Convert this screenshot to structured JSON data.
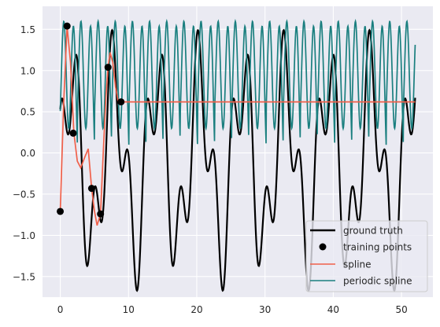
{
  "chart_data": {
    "type": "line",
    "title": "",
    "xlabel": "",
    "ylabel": "",
    "xlim": [
      -2.6,
      54.6
    ],
    "ylim": [
      -1.75,
      1.78
    ],
    "grid": true,
    "legend_position": "bottom-right",
    "x_ticks": [
      0,
      10,
      20,
      30,
      40,
      50
    ],
    "x_tick_labels": [
      "0",
      "10",
      "20",
      "30",
      "40",
      "50"
    ],
    "y_ticks": [
      -1.5,
      -1.0,
      -0.5,
      0.0,
      0.5,
      1.0,
      1.5
    ],
    "y_tick_labels": [
      "−1.5",
      "−1.0",
      "−0.5",
      "0.0",
      "0.5",
      "1.0",
      "1.5"
    ],
    "series": [
      {
        "name": "ground truth",
        "kind": "line",
        "color": "#000000",
        "x_range": [
          0,
          52
        ],
        "formula": "sin(x) + cos(2.5x) in equivalent form",
        "samples": 1040
      },
      {
        "name": "training points",
        "kind": "scatter",
        "color": "#000000",
        "x": [
          0.0,
          1.0,
          1.9,
          4.6,
          5.9,
          7.0,
          8.9
        ],
        "y": [
          -0.71,
          1.54,
          0.24,
          -0.43,
          -0.74,
          1.04,
          0.62
        ]
      },
      {
        "name": "spline",
        "kind": "line",
        "color": "#f0604a",
        "x": [
          0,
          0.5,
          1.0,
          1.5,
          2.0,
          2.5,
          3.0,
          3.6,
          4.1,
          4.6,
          5.0,
          5.4,
          5.9,
          6.3,
          6.7,
          7.0,
          7.3,
          7.7,
          8.1,
          8.5,
          8.9,
          9.5,
          10,
          20,
          30,
          40,
          52
        ],
        "y": [
          -0.71,
          0.6,
          1.54,
          1.1,
          0.24,
          -0.1,
          -0.18,
          -0.05,
          0.05,
          -0.43,
          -0.7,
          -0.88,
          -0.74,
          0.0,
          0.7,
          1.04,
          1.22,
          1.1,
          0.8,
          0.62,
          0.62,
          0.62,
          0.62,
          0.62,
          0.62,
          0.62,
          0.62
        ]
      },
      {
        "name": "periodic spline",
        "kind": "line",
        "color": "#1a7f7f",
        "period": 2.5133,
        "x_range": [
          0,
          52
        ]
      }
    ]
  }
}
